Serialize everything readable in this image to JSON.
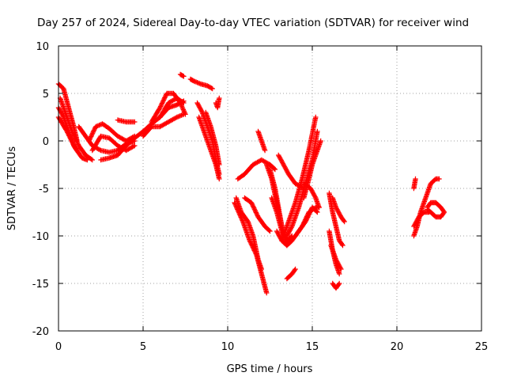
{
  "chart_data": {
    "type": "scatter",
    "title": "Day 257 of 2024, Sidereal Day-to-day VTEC variation (SDTVAR) for receiver wind",
    "xlabel": "GPS time / hours",
    "ylabel": "SDTVAR / TECUs",
    "xlim": [
      0,
      25
    ],
    "ylim": [
      -20,
      10
    ],
    "x_ticks": [
      0,
      5,
      10,
      15,
      20,
      25
    ],
    "y_ticks": [
      -20,
      -15,
      -10,
      -5,
      0,
      5,
      10
    ],
    "x_tick_labels": [
      "0",
      "5",
      "10",
      "15",
      "20",
      "25"
    ],
    "y_tick_labels": [
      "-20",
      "-15",
      "-10",
      "-5",
      "0",
      "5",
      "10"
    ],
    "grid": true,
    "legend": "none",
    "marker": "plus",
    "color": "#ff0000",
    "segments": [
      [
        [
          0.0,
          6.0
        ],
        [
          0.3,
          5.5
        ],
        [
          0.6,
          3.5
        ],
        [
          0.9,
          1.5
        ],
        [
          1.1,
          0.0
        ]
      ],
      [
        [
          0.0,
          3.5
        ],
        [
          0.3,
          2.5
        ],
        [
          0.6,
          1.0
        ],
        [
          0.9,
          -0.5
        ],
        [
          1.1,
          -1.0
        ]
      ],
      [
        [
          0.1,
          4.5
        ],
        [
          0.4,
          3.0
        ],
        [
          0.8,
          1.0
        ],
        [
          1.2,
          -0.5
        ],
        [
          1.6,
          -1.5
        ],
        [
          2.0,
          -2.0
        ]
      ],
      [
        [
          0.0,
          2.5
        ],
        [
          0.5,
          1.0
        ],
        [
          1.0,
          -0.8
        ],
        [
          1.4,
          -1.8
        ],
        [
          1.7,
          -2.0
        ]
      ],
      [
        [
          1.2,
          1.5
        ],
        [
          1.6,
          0.5
        ],
        [
          2.0,
          -0.5
        ],
        [
          2.5,
          -1.0
        ],
        [
          3.0,
          -1.2
        ],
        [
          3.5,
          -1.0
        ],
        [
          4.0,
          -0.3
        ],
        [
          4.5,
          0.0
        ]
      ],
      [
        [
          1.8,
          0.0
        ],
        [
          2.2,
          1.5
        ],
        [
          2.6,
          1.8
        ],
        [
          3.0,
          1.3
        ],
        [
          3.5,
          0.5
        ],
        [
          4.0,
          0.0
        ],
        [
          4.5,
          0.5
        ]
      ],
      [
        [
          2.5,
          -2.0
        ],
        [
          3.0,
          -1.8
        ],
        [
          3.5,
          -1.5
        ],
        [
          4.0,
          -0.5
        ],
        [
          4.5,
          0.3
        ],
        [
          5.0,
          1.0
        ]
      ],
      [
        [
          3.5,
          2.2
        ],
        [
          4.0,
          2.0
        ],
        [
          4.5,
          2.0
        ]
      ],
      [
        [
          2.0,
          -1.0
        ],
        [
          2.5,
          0.5
        ],
        [
          3.0,
          0.3
        ],
        [
          3.5,
          -0.5
        ],
        [
          4.0,
          -1.0
        ],
        [
          4.5,
          -0.5
        ]
      ],
      [
        [
          5.0,
          1.0
        ],
        [
          5.5,
          1.8
        ],
        [
          6.0,
          2.5
        ],
        [
          6.5,
          3.5
        ],
        [
          7.0,
          3.8
        ],
        [
          7.4,
          4.2
        ]
      ],
      [
        [
          5.0,
          0.5
        ],
        [
          5.5,
          1.5
        ],
        [
          6.0,
          1.5
        ],
        [
          6.5,
          2.0
        ],
        [
          7.0,
          2.5
        ],
        [
          7.4,
          2.8
        ]
      ],
      [
        [
          5.5,
          2.0
        ],
        [
          6.0,
          3.5
        ],
        [
          6.4,
          5.0
        ],
        [
          6.8,
          5.0
        ],
        [
          7.2,
          4.0
        ],
        [
          7.5,
          2.8
        ]
      ],
      [
        [
          6.0,
          2.5
        ],
        [
          6.5,
          4.0
        ],
        [
          7.0,
          4.5
        ],
        [
          7.4,
          4.0
        ]
      ],
      [
        [
          7.2,
          7.0
        ],
        [
          7.4,
          6.8
        ]
      ],
      [
        [
          7.8,
          6.5
        ],
        [
          8.0,
          6.3
        ],
        [
          8.4,
          6.0
        ],
        [
          8.8,
          5.8
        ],
        [
          9.1,
          5.5
        ]
      ],
      [
        [
          8.2,
          4.0
        ],
        [
          8.5,
          3.0
        ],
        [
          8.8,
          1.5
        ],
        [
          9.1,
          0.0
        ],
        [
          9.3,
          -2.0
        ],
        [
          9.5,
          -3.5
        ]
      ],
      [
        [
          8.3,
          2.5
        ],
        [
          8.6,
          1.0
        ],
        [
          9.0,
          -1.0
        ],
        [
          9.3,
          -2.5
        ],
        [
          9.5,
          -4.0
        ]
      ],
      [
        [
          8.7,
          3.0
        ],
        [
          9.0,
          1.5
        ],
        [
          9.3,
          -0.5
        ],
        [
          9.5,
          -2.5
        ]
      ],
      [
        [
          9.3,
          4.0
        ],
        [
          9.4,
          3.5
        ],
        [
          9.5,
          4.5
        ]
      ],
      [
        [
          10.5,
          -6.0
        ],
        [
          10.8,
          -7.5
        ],
        [
          11.2,
          -8.5
        ],
        [
          11.5,
          -10.0
        ],
        [
          11.8,
          -12.5
        ],
        [
          12.0,
          -13.5
        ]
      ],
      [
        [
          10.4,
          -6.5
        ],
        [
          10.9,
          -8.5
        ],
        [
          11.3,
          -10.5
        ],
        [
          11.7,
          -12.0
        ],
        [
          12.0,
          -14.0
        ],
        [
          12.3,
          -16.0
        ]
      ],
      [
        [
          10.6,
          -4.0
        ],
        [
          11.0,
          -3.5
        ],
        [
          11.5,
          -2.5
        ],
        [
          12.0,
          -2.0
        ],
        [
          12.5,
          -2.5
        ],
        [
          12.8,
          -3.0
        ]
      ],
      [
        [
          11.0,
          -6.0
        ],
        [
          11.4,
          -6.5
        ],
        [
          11.8,
          -8.0
        ],
        [
          12.2,
          -9.0
        ],
        [
          12.5,
          -9.5
        ]
      ],
      [
        [
          11.8,
          1.0
        ],
        [
          12.0,
          0.0
        ],
        [
          12.2,
          -1.0
        ]
      ],
      [
        [
          12.3,
          -2.5
        ],
        [
          12.6,
          -4.0
        ],
        [
          12.9,
          -6.5
        ],
        [
          13.2,
          -9.0
        ],
        [
          13.5,
          -11.0
        ]
      ],
      [
        [
          12.5,
          -3.0
        ],
        [
          12.8,
          -5.0
        ],
        [
          13.1,
          -8.0
        ],
        [
          13.3,
          -10.0
        ]
      ],
      [
        [
          12.6,
          -6.0
        ],
        [
          12.9,
          -7.5
        ],
        [
          13.2,
          -9.5
        ],
        [
          13.5,
          -10.5
        ],
        [
          13.8,
          -10.0
        ]
      ],
      [
        [
          13.0,
          -1.5
        ],
        [
          13.3,
          -2.5
        ],
        [
          13.6,
          -3.5
        ],
        [
          14.0,
          -4.5
        ],
        [
          14.5,
          -5.0
        ]
      ],
      [
        [
          12.9,
          -9.5
        ],
        [
          13.2,
          -10.5
        ],
        [
          13.5,
          -11.0
        ],
        [
          13.8,
          -10.5
        ],
        [
          14.2,
          -9.5
        ],
        [
          14.6,
          -8.5
        ],
        [
          15.0,
          -7.0
        ],
        [
          15.3,
          -7.5
        ]
      ],
      [
        [
          13.5,
          -10.0
        ],
        [
          13.8,
          -9.0
        ],
        [
          14.2,
          -7.0
        ],
        [
          14.6,
          -4.5
        ],
        [
          15.0,
          -2.0
        ],
        [
          15.3,
          1.0
        ]
      ],
      [
        [
          13.2,
          -10.5
        ],
        [
          13.6,
          -8.5
        ],
        [
          14.0,
          -6.5
        ],
        [
          14.4,
          -4.0
        ],
        [
          14.8,
          -1.0
        ],
        [
          15.2,
          2.5
        ]
      ],
      [
        [
          14.5,
          -6.0
        ],
        [
          14.8,
          -4.0
        ],
        [
          15.0,
          -2.5
        ],
        [
          15.3,
          -1.0
        ],
        [
          15.5,
          0.0
        ]
      ],
      [
        [
          14.5,
          -4.5
        ],
        [
          14.9,
          -5.0
        ],
        [
          15.2,
          -6.0
        ],
        [
          15.4,
          -7.0
        ]
      ],
      [
        [
          14.0,
          -10.0
        ],
        [
          14.4,
          -9.0
        ],
        [
          14.8,
          -7.5
        ],
        [
          15.2,
          -7.0
        ],
        [
          15.4,
          -7.0
        ]
      ],
      [
        [
          13.5,
          -14.5
        ],
        [
          13.8,
          -14.0
        ],
        [
          14.0,
          -13.5
        ]
      ],
      [
        [
          16.0,
          -5.5
        ],
        [
          16.2,
          -7.5
        ],
        [
          16.4,
          -9.0
        ],
        [
          16.6,
          -10.5
        ],
        [
          16.8,
          -11.0
        ]
      ],
      [
        [
          16.2,
          -6.0
        ],
        [
          16.4,
          -7.0
        ],
        [
          16.7,
          -8.0
        ],
        [
          16.9,
          -8.5
        ]
      ],
      [
        [
          16.0,
          -9.5
        ],
        [
          16.2,
          -11.5
        ],
        [
          16.4,
          -13.0
        ],
        [
          16.6,
          -14.0
        ]
      ],
      [
        [
          16.1,
          -11.0
        ],
        [
          16.4,
          -12.5
        ],
        [
          16.7,
          -13.5
        ]
      ],
      [
        [
          16.2,
          -15.0
        ],
        [
          16.4,
          -15.5
        ],
        [
          16.6,
          -15.0
        ]
      ],
      [
        [
          21.0,
          -10.0
        ],
        [
          21.2,
          -9.0
        ],
        [
          21.4,
          -7.5
        ],
        [
          21.7,
          -6.0
        ],
        [
          22.0,
          -4.5
        ],
        [
          22.3,
          -4.0
        ],
        [
          22.5,
          -4.0
        ]
      ],
      [
        [
          21.0,
          -9.0
        ],
        [
          21.3,
          -8.0
        ],
        [
          21.6,
          -7.5
        ],
        [
          21.9,
          -7.5
        ]
      ],
      [
        [
          21.0,
          -5.0
        ],
        [
          21.1,
          -4.0
        ]
      ],
      [
        [
          21.8,
          -7.0
        ],
        [
          22.0,
          -6.5
        ],
        [
          22.3,
          -6.5
        ],
        [
          22.6,
          -7.0
        ],
        [
          22.8,
          -7.5
        ],
        [
          22.6,
          -8.0
        ],
        [
          22.3,
          -8.0
        ],
        [
          22.0,
          -7.5
        ],
        [
          21.8,
          -7.2
        ]
      ]
    ]
  }
}
